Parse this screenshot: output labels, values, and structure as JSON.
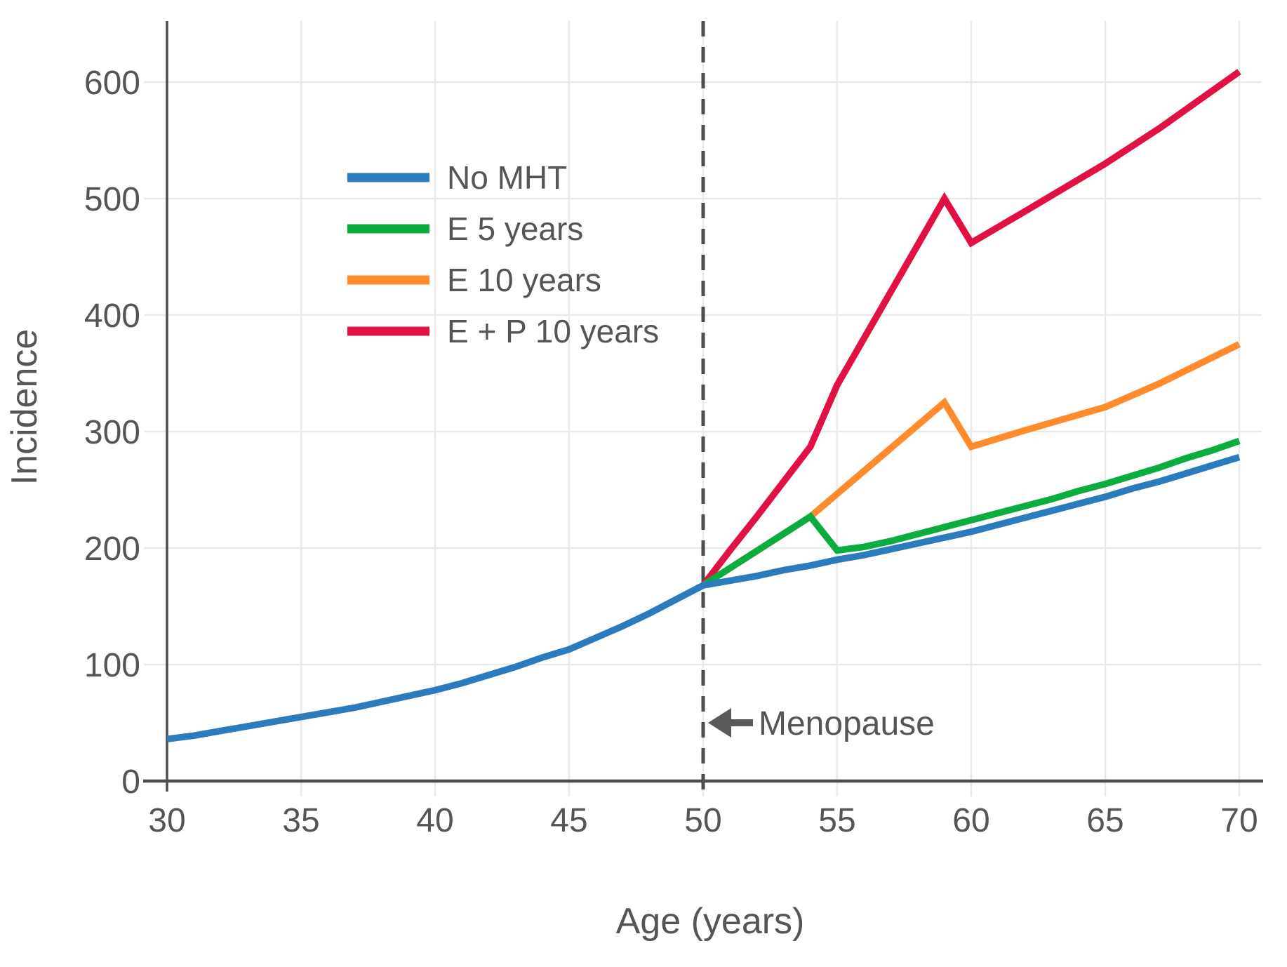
{
  "chart_data": {
    "type": "line",
    "title": "",
    "xlabel": "Age (years)",
    "ylabel": "Incidence",
    "x_ticks": [
      30,
      35,
      40,
      45,
      50,
      55,
      60,
      65,
      70
    ],
    "y_ticks": [
      0,
      100,
      200,
      300,
      400,
      500,
      600
    ],
    "xlim": [
      30,
      70
    ],
    "ylim": [
      0,
      652
    ],
    "grid": true,
    "legend_position": "upper-left-inside",
    "annotation": {
      "label": "Menopause",
      "arrow_direction": "left",
      "x": 50,
      "y": 50
    },
    "reference_line": {
      "axis": "x",
      "value": 50,
      "style": "dashed"
    },
    "series": [
      {
        "name": "No MHT",
        "color": "#2b7cbd",
        "points": [
          [
            30,
            36
          ],
          [
            31,
            39
          ],
          [
            32,
            43
          ],
          [
            33,
            47
          ],
          [
            34,
            51
          ],
          [
            35,
            55
          ],
          [
            36,
            59
          ],
          [
            37,
            63
          ],
          [
            38,
            68
          ],
          [
            39,
            73
          ],
          [
            40,
            78
          ],
          [
            41,
            84
          ],
          [
            42,
            91
          ],
          [
            43,
            98
          ],
          [
            44,
            106
          ],
          [
            45,
            113
          ],
          [
            46,
            123
          ],
          [
            47,
            133
          ],
          [
            48,
            144
          ],
          [
            49,
            156
          ],
          [
            50,
            168
          ],
          [
            51,
            172
          ],
          [
            52,
            176
          ],
          [
            53,
            181
          ],
          [
            54,
            185
          ],
          [
            55,
            190
          ],
          [
            56,
            194
          ],
          [
            57,
            199
          ],
          [
            58,
            204
          ],
          [
            59,
            209
          ],
          [
            60,
            214
          ],
          [
            61,
            220
          ],
          [
            62,
            226
          ],
          [
            63,
            232
          ],
          [
            64,
            238
          ],
          [
            65,
            244
          ],
          [
            66,
            251
          ],
          [
            67,
            257
          ],
          [
            68,
            264
          ],
          [
            69,
            271
          ],
          [
            70,
            278
          ]
        ]
      },
      {
        "name": "E 5 years",
        "color": "#0bad3f",
        "points": [
          [
            50,
            168
          ],
          [
            54,
            227
          ],
          [
            55,
            198
          ],
          [
            56,
            201
          ],
          [
            57,
            206
          ],
          [
            58,
            212
          ],
          [
            59,
            218
          ],
          [
            60,
            224
          ],
          [
            61,
            230
          ],
          [
            62,
            236
          ],
          [
            63,
            242
          ],
          [
            64,
            249
          ],
          [
            65,
            255
          ],
          [
            66,
            262
          ],
          [
            67,
            269
          ],
          [
            68,
            277
          ],
          [
            69,
            284
          ],
          [
            70,
            292
          ]
        ]
      },
      {
        "name": "E 10 years",
        "color": "#ff8b2d",
        "points": [
          [
            50,
            168
          ],
          [
            54,
            227
          ],
          [
            59,
            325
          ],
          [
            60,
            287
          ],
          [
            62,
            301
          ],
          [
            65,
            321
          ],
          [
            67,
            341
          ],
          [
            70,
            375
          ]
        ]
      },
      {
        "name": "E + P 10 years",
        "color": "#e01243",
        "points": [
          [
            50,
            168
          ],
          [
            51,
            198
          ],
          [
            52,
            227
          ],
          [
            53,
            257
          ],
          [
            54,
            287
          ],
          [
            55,
            340
          ],
          [
            56,
            380
          ],
          [
            57,
            420
          ],
          [
            58,
            460
          ],
          [
            59,
            500
          ],
          [
            60,
            462
          ],
          [
            62,
            489
          ],
          [
            65,
            530
          ],
          [
            67,
            560
          ],
          [
            70,
            609
          ]
        ]
      }
    ]
  },
  "styles": {
    "background": "#ffffff",
    "axis_color": "#4d4d4d",
    "text_color": "#555555",
    "grid_color": "#e9e9e9",
    "annotation_color": "#5a5a5a"
  }
}
